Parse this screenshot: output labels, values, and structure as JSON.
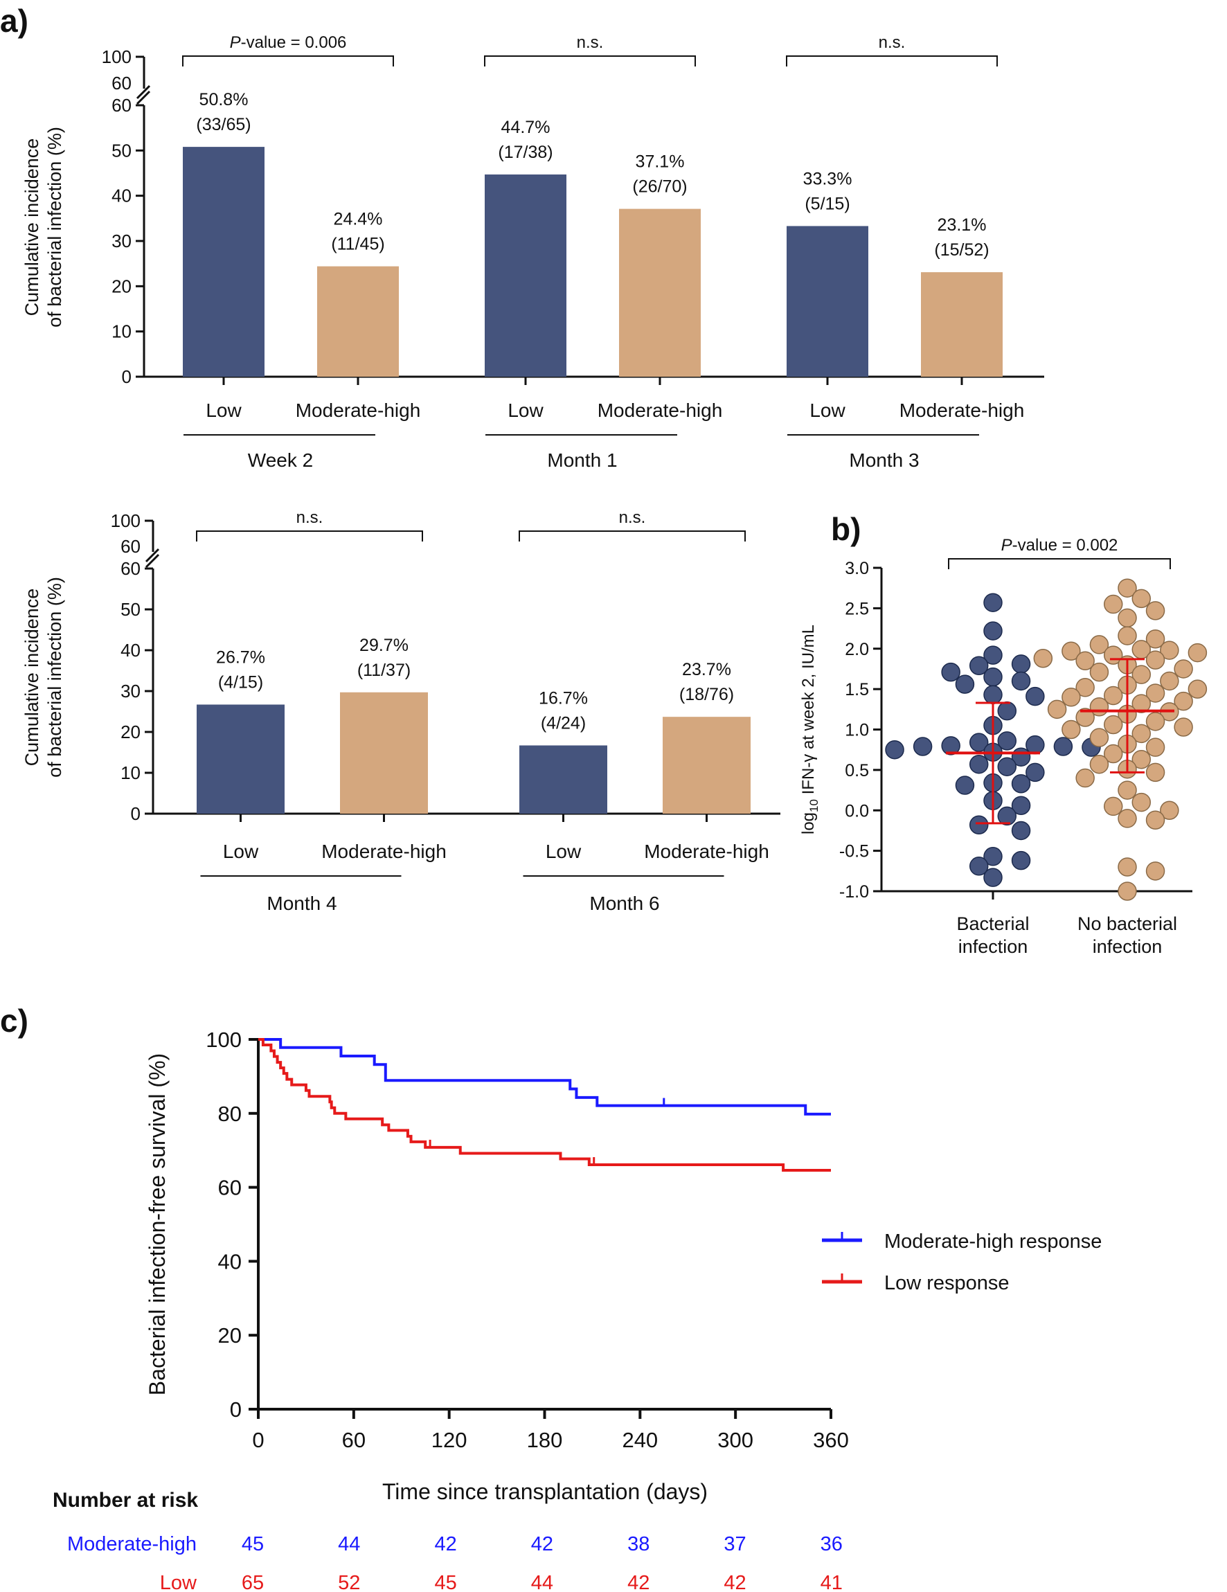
{
  "panel_labels": {
    "a": "a)",
    "b": "b)",
    "c": "c)"
  },
  "colors": {
    "low": "#45547d",
    "moderate_high": "#d4a77e",
    "moderate_high_line": "#1a1aff",
    "low_line": "#e61a1a",
    "summary_red": "#e01010",
    "axis": "#111111"
  },
  "chart_data": [
    {
      "id": "a-top",
      "type": "bar",
      "ylabel": [
        "Cumulative incidence",
        "of bacterial infection (%)"
      ],
      "ylim": [
        0,
        60
      ],
      "break_ticks": [
        "100",
        "60"
      ],
      "yticks": [
        0,
        10,
        20,
        30,
        40,
        50,
        60
      ],
      "groups": [
        {
          "name": "Week 2",
          "bars": [
            {
              "category": "Low",
              "value": 50.8,
              "label": "50.8%",
              "sub": "(33/65)",
              "series": "low"
            },
            {
              "category": "Moderate-high",
              "value": 24.4,
              "label": "24.4%",
              "sub": "(11/45)",
              "series": "moderate_high"
            }
          ],
          "comparison": "P-value = 0.006"
        },
        {
          "name": "Month 1",
          "bars": [
            {
              "category": "Low",
              "value": 44.7,
              "label": "44.7%",
              "sub": "(17/38)",
              "series": "low"
            },
            {
              "category": "Moderate-high",
              "value": 37.1,
              "label": "37.1%",
              "sub": "(26/70)",
              "series": "moderate_high"
            }
          ],
          "comparison": "n.s."
        },
        {
          "name": "Month 3",
          "bars": [
            {
              "category": "Low",
              "value": 33.3,
              "label": "33.3%",
              "sub": "(5/15)",
              "series": "low"
            },
            {
              "category": "Moderate-high",
              "value": 23.1,
              "label": "23.1%",
              "sub": "(15/52)",
              "series": "moderate_high"
            }
          ],
          "comparison": "n.s."
        }
      ]
    },
    {
      "id": "a-bottom",
      "type": "bar",
      "ylabel": [
        "Cumulative incidence",
        "of bacterial infection (%)"
      ],
      "ylim": [
        0,
        60
      ],
      "break_ticks": [
        "100",
        "60"
      ],
      "yticks": [
        0,
        10,
        20,
        30,
        40,
        50,
        60
      ],
      "groups": [
        {
          "name": "Month 4",
          "bars": [
            {
              "category": "Low",
              "value": 26.7,
              "label": "26.7%",
              "sub": "(4/15)",
              "series": "low"
            },
            {
              "category": "Moderate-high",
              "value": 29.7,
              "label": "29.7%",
              "sub": "(11/37)",
              "series": "moderate_high"
            }
          ],
          "comparison": "n.s."
        },
        {
          "name": "Month 6",
          "bars": [
            {
              "category": "Low",
              "value": 16.7,
              "label": "16.7%",
              "sub": "(4/24)",
              "series": "low"
            },
            {
              "category": "Moderate-high",
              "value": 23.7,
              "label": "23.7%",
              "sub": "(18/76)",
              "series": "moderate_high"
            }
          ],
          "comparison": "n.s."
        }
      ]
    },
    {
      "id": "b",
      "type": "scatter",
      "ylabel": "log10 IFN-γ at week 2, IU/mL",
      "ylim": [
        -1.0,
        3.0
      ],
      "yticks": [
        "-1.0",
        "-0.5",
        "0.0",
        "0.5",
        "1.0",
        "1.5",
        "2.0",
        "2.5",
        "3.0"
      ],
      "comparison": "P-value = 0.002",
      "groups": [
        {
          "name": [
            "Bacterial",
            "infection"
          ],
          "series": "low",
          "mean": 0.71,
          "sd_low": -0.16,
          "sd_high": 1.33,
          "points": [
            2.57,
            2.22,
            1.92,
            1.81,
            1.79,
            1.71,
            1.65,
            1.6,
            1.56,
            1.43,
            1.41,
            1.23,
            1.05,
            0.86,
            0.84,
            0.81,
            0.8,
            0.79,
            0.79,
            0.78,
            0.75,
            0.72,
            0.66,
            0.57,
            0.54,
            0.47,
            0.34,
            0.33,
            0.31,
            0.12,
            0.06,
            -0.07,
            -0.18,
            -0.25,
            -0.57,
            -0.62,
            -0.69,
            -0.83
          ]
        },
        {
          "name": [
            "No bacterial",
            "infection"
          ],
          "series": "moderate_high",
          "mean": 1.23,
          "sd_low": 0.47,
          "sd_high": 1.87,
          "points": [
            2.75,
            2.62,
            2.55,
            2.47,
            2.38,
            2.16,
            2.12,
            2.05,
            1.99,
            1.98,
            1.97,
            1.95,
            1.92,
            1.88,
            1.86,
            1.85,
            1.8,
            1.75,
            1.71,
            1.68,
            1.6,
            1.55,
            1.52,
            1.5,
            1.45,
            1.42,
            1.4,
            1.35,
            1.32,
            1.28,
            1.25,
            1.22,
            1.19,
            1.15,
            1.1,
            1.06,
            1.03,
            1.0,
            0.95,
            0.9,
            0.82,
            0.78,
            0.7,
            0.63,
            0.57,
            0.51,
            0.47,
            0.4,
            0.25,
            0.1,
            0.05,
            0.0,
            -0.1,
            -0.12,
            -0.7,
            -0.75,
            -1.0
          ]
        }
      ]
    },
    {
      "id": "c",
      "type": "line",
      "ylabel": "Bacterial infection-free survival (%)",
      "xlabel": "Time since transplantation (days)",
      "xlim": [
        0,
        360
      ],
      "ylim": [
        0,
        100
      ],
      "xticks": [
        0,
        60,
        120,
        180,
        240,
        300,
        360
      ],
      "yticks": [
        0,
        20,
        40,
        60,
        80,
        100
      ],
      "series": [
        {
          "name": "Moderate-high response",
          "color_key": "moderate_high_line",
          "steps": [
            [
              0,
              100
            ],
            [
              14,
              97.8
            ],
            [
              52,
              95.5
            ],
            [
              73,
              93.2
            ],
            [
              80,
              88.9
            ],
            [
              196,
              86.6
            ],
            [
              200,
              84.3
            ],
            [
              213,
              82.1
            ],
            [
              344,
              79.8
            ],
            [
              360,
              79.8
            ]
          ],
          "censor": [
            [
              255,
              82.1
            ]
          ]
        },
        {
          "name": "Low response",
          "color_key": "low_line",
          "steps": [
            [
              0,
              100
            ],
            [
              3,
              98.5
            ],
            [
              8,
              96.9
            ],
            [
              10,
              95.4
            ],
            [
              12,
              93.8
            ],
            [
              14,
              92.3
            ],
            [
              16,
              90.8
            ],
            [
              18,
              89.2
            ],
            [
              21,
              87.7
            ],
            [
              30,
              86.2
            ],
            [
              32,
              84.6
            ],
            [
              45,
              83.1
            ],
            [
              46,
              81.5
            ],
            [
              48,
              80.0
            ],
            [
              55,
              78.5
            ],
            [
              78,
              76.9
            ],
            [
              82,
              75.4
            ],
            [
              94,
              73.8
            ],
            [
              96,
              72.3
            ],
            [
              105,
              70.8
            ],
            [
              112,
              70.8
            ],
            [
              127,
              69.2
            ],
            [
              190,
              67.7
            ],
            [
              208,
              66.1
            ],
            [
              330,
              64.6
            ],
            [
              360,
              64.6
            ]
          ],
          "censor": [
            [
              108,
              70.8
            ],
            [
              211,
              66.1
            ]
          ]
        }
      ],
      "risk_table": {
        "title": "Number at risk",
        "rows": [
          {
            "label": "Moderate-high",
            "color_key": "moderate_high_line",
            "values": [
              "45",
              "44",
              "42",
              "42",
              "38",
              "37",
              "36"
            ]
          },
          {
            "label": "Low",
            "color_key": "low_line",
            "values": [
              "65",
              "52",
              "45",
              "44",
              "42",
              "42",
              "41"
            ]
          }
        ]
      }
    }
  ]
}
